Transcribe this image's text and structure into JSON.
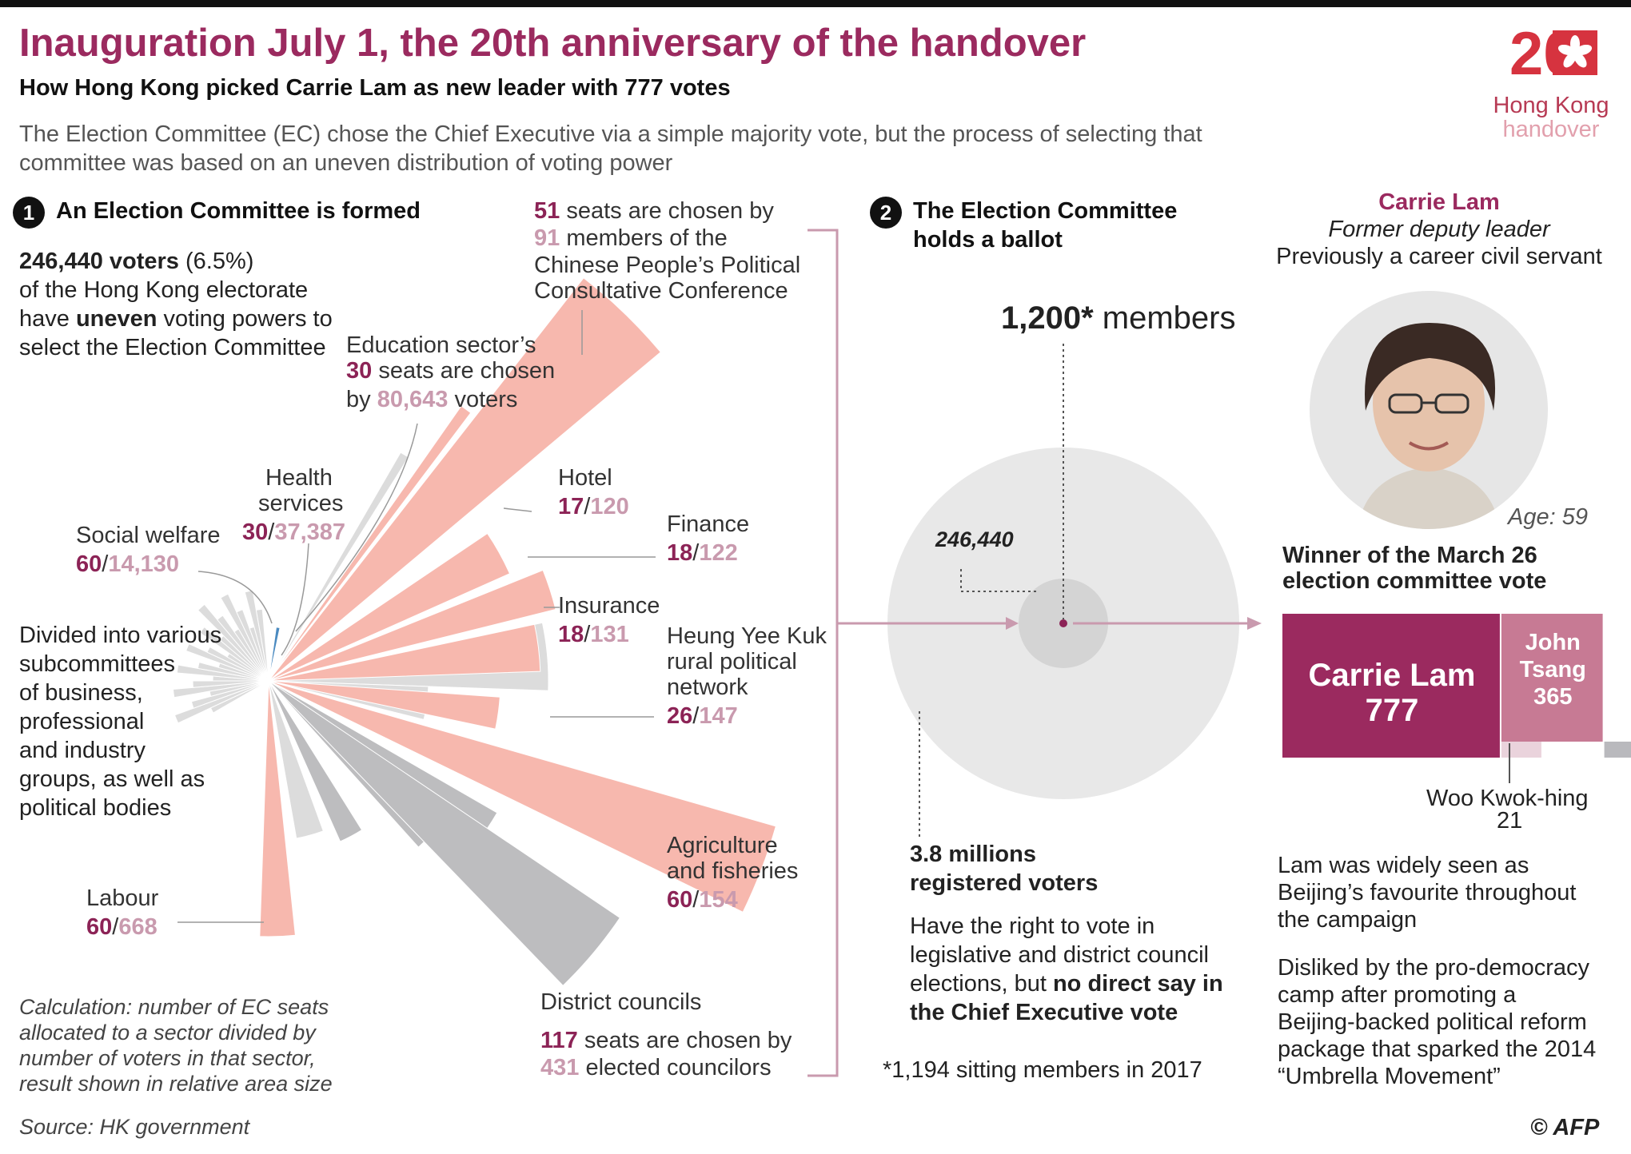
{
  "header": {
    "title": "Inauguration July 1, the 20th anniversary of the handover",
    "subtitle": "How Hong Kong picked Carrie Lam as new leader with 777 votes",
    "intro": "The Election Committee  (EC) chose the Chief Executive via a simple majority vote, but  the process of selecting that committee was based on an uneven distribution of voting power"
  },
  "logo": {
    "number": "20",
    "line1": "Hong Kong",
    "line2": "handover"
  },
  "step1": {
    "number": "1",
    "heading": "An Election Committee is formed",
    "voters_bold": "246,440 voters",
    "voters_pct": " (6.5%)",
    "line2": "of  the Hong Kong electorate",
    "line3_pre": "have ",
    "line3_bold": "uneven",
    "line3_post": " voting powers to",
    "line4": "select the Election Committee",
    "divided": [
      "Divided into various",
      "subcommittees",
      "of business,",
      "professional",
      "and industry",
      "groups, as well as",
      "political bodies"
    ],
    "calculation": [
      "Calculation: number of EC seats",
      "allocated to a sector divided by",
      "number of voters in that sector,",
      "result shown in relative area size"
    ]
  },
  "sectors": {
    "cppcc": {
      "seats": "51",
      "seats_text": " seats are chosen by",
      "voters": "91",
      "voters_text": " members of the",
      "line3": "Chinese People’s Political",
      "line4": "Consultative Conference"
    },
    "education": {
      "name": "Education sector’s",
      "seats": "30",
      "seats_text": " seats are chosen",
      "by": "by ",
      "voters": "80,643",
      "voters_text": " voters"
    },
    "health": {
      "name1": "Health",
      "name2": "services",
      "seats": "30",
      "voters": "37,387"
    },
    "social": {
      "name": "Social welfare",
      "seats": "60",
      "voters": "14,130"
    },
    "hotel": {
      "name": "Hotel",
      "seats": "17",
      "voters": "120"
    },
    "finance": {
      "name": "Finance",
      "seats": "18",
      "voters": "122"
    },
    "insurance": {
      "name": "Insurance",
      "seats": "18",
      "voters": "131"
    },
    "heung": {
      "name1": "Heung Yee Kuk",
      "name2": "rural political",
      "name3": "network",
      "seats": "26",
      "voters": "147"
    },
    "agri": {
      "name1": "Agriculture",
      "name2": "and fisheries",
      "seats": "60",
      "voters": "154"
    },
    "labour": {
      "name": "Labour",
      "seats": "60",
      "voters": "668"
    },
    "district": {
      "name": "District councils",
      "seats": "117",
      "seats_text": " seats are chosen by",
      "voters": "431",
      "voters_text": " elected councilors"
    },
    "slash": "/"
  },
  "step2": {
    "number": "2",
    "heading1": "The Election Committee",
    "heading2": "holds a ballot",
    "members_bold": "1,200*",
    "members_text": " members",
    "inner_label": "246,440",
    "registered1": "3.8 millions",
    "registered2": "registered voters",
    "right1": "Have the right to vote in",
    "right2": "legislative and district council",
    "right3_pre": "elections, but ",
    "right3_bold": "no direct say in",
    "right4": "the Chief Executive vote",
    "footnote": "*1,194 sitting members in 2017"
  },
  "winner": {
    "name": "Carrie Lam",
    "role": "Former deputy leader",
    "career": "Previously a career civil servant",
    "age": "Age: 59",
    "caption1": "Winner of the March 26",
    "caption2": "election committee vote",
    "bar1_name": "Carrie Lam",
    "bar1_votes": "777",
    "bar2_name1": "John",
    "bar2_name2": "Tsang",
    "bar2_votes": "365",
    "bar3_name": "Woo Kwok-hing",
    "bar3_votes": "21",
    "para1": [
      "Lam was widely seen as",
      "Beijing’s favourite throughout",
      "the campaign"
    ],
    "para2": [
      "Disliked by the pro-democracy",
      "camp after promoting a",
      "Beijing-backed political reform",
      "package that sparked the 2014",
      "“Umbrella Movement”"
    ]
  },
  "footer": {
    "source": "Source: HK government",
    "credit": "© AFP"
  },
  "colors": {
    "title": "#9b2a5f",
    "seats": "#8c2356",
    "voters": "#c99aae",
    "pink_sector": "#f7b8ae",
    "grey_sector": "#dcdcdc",
    "dark_sector": "#bdbdbf",
    "blue_sector": "#4a8ac0",
    "lam_bar": "#9b2a5f",
    "tsang_bar": "#c77a94",
    "woo_bar": "#b9b9bd"
  },
  "chart_data": [
    {
      "type": "polar-area",
      "title": "An Election Committee is formed",
      "measure": "number of EC seats allocated to a sector divided by number of voters in that sector (relative area size)",
      "highlighted_sectors": [
        {
          "name": "Chinese People’s Political Consultative Conference",
          "seats": 51,
          "voters": 91
        },
        {
          "name": "Education",
          "seats": 30,
          "voters": 80643
        },
        {
          "name": "Health services",
          "seats": 30,
          "voters": 37387
        },
        {
          "name": "Social welfare",
          "seats": 60,
          "voters": 14130
        },
        {
          "name": "Hotel",
          "seats": 17,
          "voters": 120
        },
        {
          "name": "Finance",
          "seats": 18,
          "voters": 122
        },
        {
          "name": "Insurance",
          "seats": 18,
          "voters": 131
        },
        {
          "name": "Heung Yee Kuk rural political network",
          "seats": 26,
          "voters": 147
        },
        {
          "name": "Agriculture and fisheries",
          "seats": 60,
          "voters": 154
        },
        {
          "name": "Labour",
          "seats": 60,
          "voters": 668
        },
        {
          "name": "District councils",
          "seats": 117,
          "voters": 431
        }
      ]
    },
    {
      "type": "area",
      "title": "The Election Committee holds a ballot",
      "circles": [
        {
          "label": "3.8 millions registered voters",
          "value": 3800000
        },
        {
          "label": "246,440",
          "value": 246440
        },
        {
          "label": "1,200* members",
          "value": 1200
        }
      ]
    },
    {
      "type": "bar",
      "title": "Winner of the March 26 election committee vote",
      "categories": [
        "Carrie Lam",
        "John Tsang",
        "Woo Kwok-hing"
      ],
      "values": [
        777,
        365,
        21
      ]
    }
  ]
}
